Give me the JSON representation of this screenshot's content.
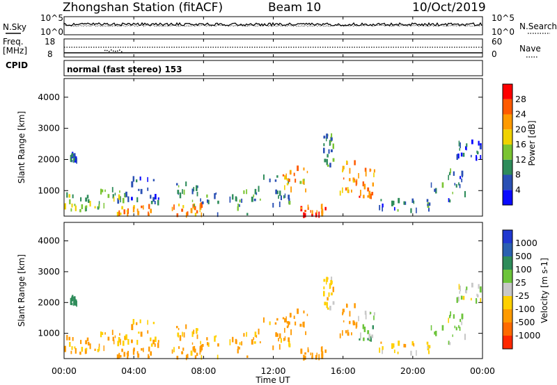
{
  "chart_data": {
    "type": "heatmap",
    "title": "Zhongshan Station (fitACF)",
    "beam_label": "Beam 10",
    "date": "10/Oct/2019",
    "mode_label": "normal (fast stereo) 153",
    "xlabel": "Time UT",
    "x_ticks": [
      "00:00",
      "04:00",
      "08:00",
      "12:00",
      "16:00",
      "20:00",
      "00:00"
    ],
    "xlim_hours": [
      0,
      24
    ],
    "noise_panel": {
      "left_label": "N.Sky",
      "right_label": "N.Search",
      "left_ticks": [
        "10^5",
        "10^0"
      ],
      "right_ticks": [
        "10^5",
        "10^0"
      ]
    },
    "freq_panel": {
      "left_label_1": "Freq.",
      "left_label_2": "[MHz]",
      "right_label": "Nave",
      "left_ticks": [
        "18",
        "8"
      ],
      "right_ticks": [
        "60",
        "0"
      ],
      "cpid_label": "CPID"
    },
    "ylabel": "Slant Range [km]",
    "ylim": [
      180,
      4600
    ],
    "y_ticks": [
      1000,
      2000,
      3000,
      4000
    ],
    "power_scale": {
      "label": "Power [dB]",
      "ticks": [
        4,
        8,
        12,
        16,
        20,
        24,
        28
      ],
      "colors": [
        "#0a0aff",
        "#2a50b4",
        "#2e8c5a",
        "#7ac432",
        "#f0d200",
        "#ff9a00",
        "#ff5a00",
        "#ff0000"
      ]
    },
    "velocity_scale": {
      "label": "Velocity [m s-1]",
      "ticks": [
        "1000",
        "500",
        "100",
        "25",
        "-25",
        "-100",
        "-500",
        "-1000"
      ],
      "colors": [
        "#2038d0",
        "#2a60b0",
        "#2e8c5a",
        "#6cc43a",
        "#c8c8c8",
        "#ffd000",
        "#ff9a00",
        "#ff6a00",
        "#ff2800"
      ]
    },
    "scatter_regions": [
      {
        "t0": 0.0,
        "t1": 1.5,
        "r0": 300,
        "r1": 900,
        "power": 14,
        "velocity": -150
      },
      {
        "t0": 0.3,
        "t1": 0.7,
        "r0": 1950,
        "r1": 2150,
        "power": 6,
        "velocity": 300
      },
      {
        "t0": 1.5,
        "t1": 3.5,
        "r0": 350,
        "r1": 1100,
        "power": 12,
        "velocity": -120
      },
      {
        "t0": 3.0,
        "t1": 5.0,
        "r0": 200,
        "r1": 500,
        "power": 22,
        "velocity": -200
      },
      {
        "t0": 3.5,
        "t1": 5.5,
        "r0": 600,
        "r1": 1500,
        "power": 7,
        "velocity": -100
      },
      {
        "t0": 6.0,
        "t1": 8.0,
        "r0": 200,
        "r1": 600,
        "power": 22,
        "velocity": -150
      },
      {
        "t0": 6.3,
        "t1": 8.5,
        "r0": 500,
        "r1": 1300,
        "power": 10,
        "velocity": -100
      },
      {
        "t0": 8.5,
        "t1": 11.0,
        "r0": 200,
        "r1": 1000,
        "power": 10,
        "velocity": -120
      },
      {
        "t0": 11.0,
        "t1": 13.0,
        "r0": 250,
        "r1": 1500,
        "power": 9,
        "velocity": -150
      },
      {
        "t0": 12.5,
        "t1": 14.0,
        "r0": 1000,
        "r1": 1800,
        "power": 20,
        "velocity": -300
      },
      {
        "t0": 13.5,
        "t1": 15.0,
        "r0": 200,
        "r1": 500,
        "power": 26,
        "velocity": -200
      },
      {
        "t0": 14.8,
        "t1": 15.4,
        "r0": 1800,
        "r1": 2900,
        "power": 10,
        "velocity": -50
      },
      {
        "t0": 15.8,
        "t1": 16.8,
        "r0": 900,
        "r1": 2000,
        "power": 22,
        "velocity": -250
      },
      {
        "t0": 16.8,
        "t1": 17.8,
        "r0": 800,
        "r1": 1700,
        "power": 24,
        "velocity": 60
      },
      {
        "t0": 18.0,
        "t1": 21.0,
        "r0": 350,
        "r1": 700,
        "power": 8,
        "velocity": -60
      },
      {
        "t0": 21.0,
        "t1": 23.0,
        "r0": 650,
        "r1": 1700,
        "power": 8,
        "velocity": 40
      },
      {
        "t0": 22.5,
        "t1": 24.0,
        "r0": 2000,
        "r1": 2600,
        "power": 6,
        "velocity": 0
      }
    ]
  }
}
